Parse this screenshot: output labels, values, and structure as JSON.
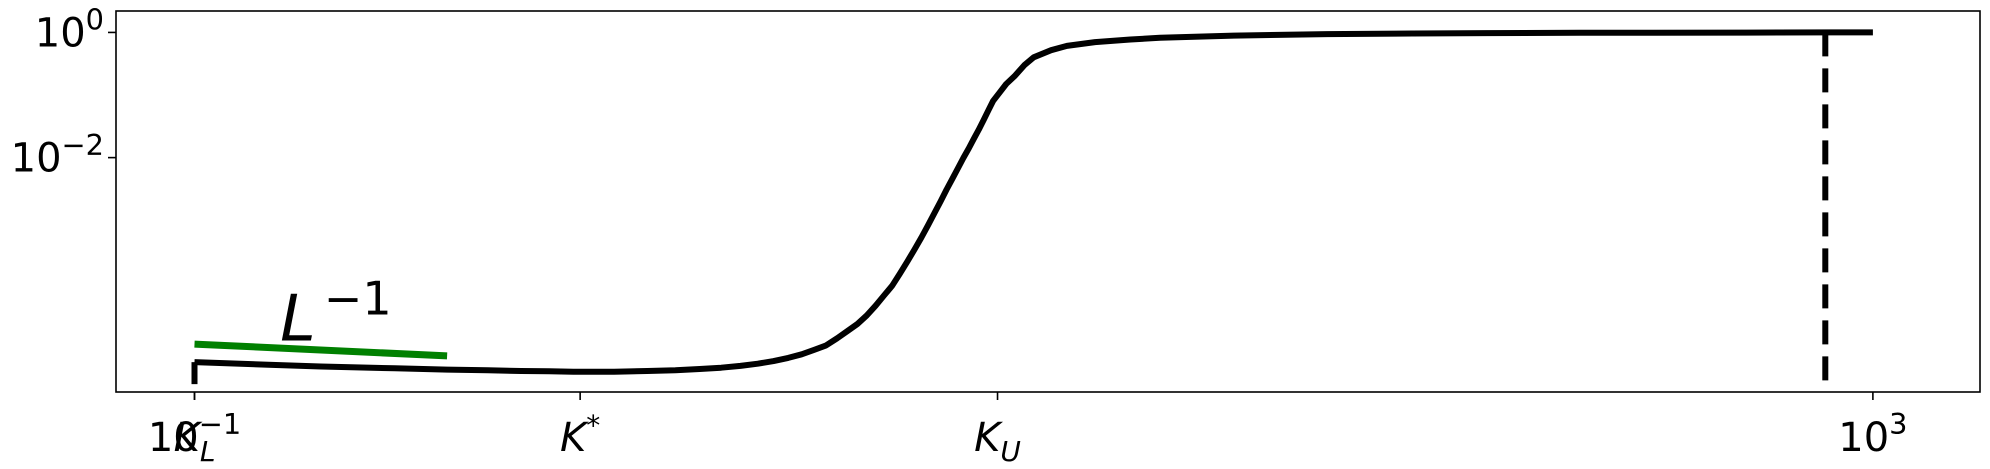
{
  "chart_data": {
    "type": "line",
    "xscale": "log",
    "yscale": "log",
    "xlim": [
      0.065,
      1800
    ],
    "ylim": [
      1.8e-06,
      2.2
    ],
    "x_ticks": [
      {
        "value": 0.1,
        "base": "10",
        "exp": "−1"
      },
      {
        "value": 1000,
        "base": "10",
        "exp": "3"
      }
    ],
    "y_ticks": [
      {
        "value": 1,
        "base": "10",
        "exp": "0"
      },
      {
        "value": 0.01,
        "base": "10",
        "exp": "−2"
      }
    ],
    "markers": [
      {
        "name": "K_L",
        "symbol": "K",
        "sub": "L",
        "x": 0.1
      },
      {
        "name": "K*",
        "symbol": "K",
        "sup": "*",
        "x": 0.83
      },
      {
        "name": "K_U",
        "symbol": "K",
        "sub": "U",
        "x": 8.2
      }
    ],
    "annotation": {
      "base": "L",
      "exp": "−1",
      "x": 0.16,
      "y": 1.2e-05
    },
    "series": [
      {
        "color": "#000000",
        "style": "solid",
        "x": [
          0.1,
          0.15,
          0.2,
          0.3,
          0.4,
          0.5,
          0.6,
          0.7,
          0.8,
          0.9,
          1.0,
          1.2,
          1.4,
          1.6,
          1.8,
          2.0,
          2.2,
          2.4,
          2.6,
          2.8,
          3.0,
          3.2,
          3.4,
          3.6,
          3.8,
          4.0,
          4.2,
          4.4,
          4.6,
          4.8,
          5.0,
          5.2,
          5.4,
          5.6,
          5.8,
          6.0,
          6.2,
          6.4,
          6.6,
          6.8,
          7.0,
          7.2,
          7.4,
          7.6,
          7.8,
          8.0,
          8.3,
          8.6,
          9.0,
          9.5,
          10,
          11,
          12,
          14,
          17,
          20,
          30,
          50,
          80,
          120,
          200,
          300,
          500,
          800,
          1000
        ],
        "y": [
          5.4e-06,
          4.9e-06,
          4.6e-06,
          4.3e-06,
          4.1e-06,
          4e-06,
          3.9e-06,
          3.85e-06,
          3.8e-06,
          3.8e-06,
          3.8e-06,
          3.9e-06,
          4e-06,
          4.2e-06,
          4.4e-06,
          4.7e-06,
          5.1e-06,
          5.6e-06,
          6.3e-06,
          7.2e-06,
          8.5e-06,
          1e-05,
          1.3e-05,
          1.7e-05,
          2.2e-05,
          3e-05,
          4.3e-05,
          6.3e-05,
          9e-05,
          0.00014,
          0.00022,
          0.00034,
          0.00053,
          0.00083,
          0.0013,
          0.002,
          0.0031,
          0.0046,
          0.0068,
          0.0099,
          0.014,
          0.02,
          0.028,
          0.04,
          0.057,
          0.08,
          0.11,
          0.15,
          0.2,
          0.3,
          0.4,
          0.52,
          0.61,
          0.7,
          0.77,
          0.82,
          0.89,
          0.94,
          0.96,
          0.975,
          0.985,
          0.99,
          0.995,
          1.0,
          1.0
        ]
      },
      {
        "color": "#008000",
        "style": "solid",
        "x": [
          0.1,
          0.4
        ],
        "y": [
          1.05e-05,
          6.8e-06
        ]
      },
      {
        "color": "#000000",
        "style": "dashed",
        "x": [
          770,
          770
        ],
        "y": [
          1.0,
          2.6e-06
        ]
      }
    ]
  }
}
